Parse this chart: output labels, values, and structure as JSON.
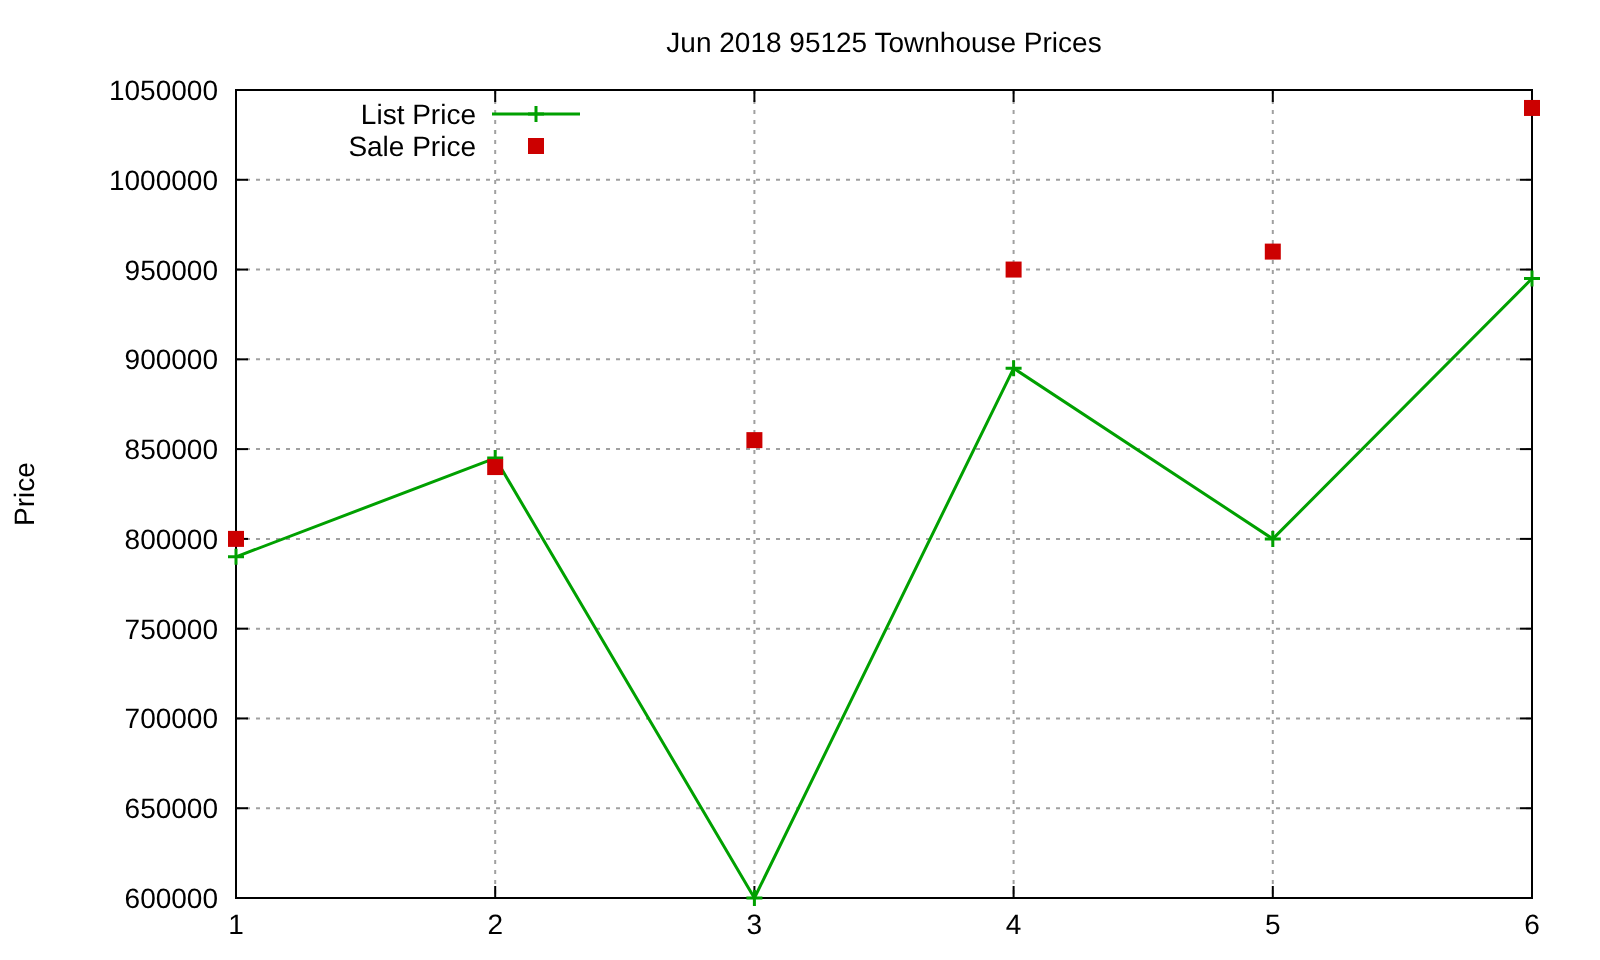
{
  "chart_data": {
    "type": "line",
    "title": "Jun 2018 95125 Townhouse Prices",
    "ylabel": "Price",
    "x": [
      1,
      2,
      3,
      4,
      5,
      6
    ],
    "series": [
      {
        "name": "List Price",
        "color": "#00a000",
        "marker": "cross",
        "values": [
          790000,
          845000,
          600000,
          895000,
          800000,
          945000
        ]
      },
      {
        "name": "Sale Price",
        "type": "scatter",
        "color": "#cc0000",
        "marker": "square",
        "values": [
          800000,
          840000,
          855000,
          950000,
          960000,
          1040000
        ]
      }
    ],
    "xlim": [
      1,
      6
    ],
    "xticks": [
      1,
      2,
      3,
      4,
      5,
      6
    ],
    "ylim": [
      600000,
      1050000
    ],
    "yticks": [
      600000,
      650000,
      700000,
      750000,
      800000,
      850000,
      900000,
      950000,
      1000000,
      1050000
    ],
    "grid": true,
    "legend": "top left"
  }
}
